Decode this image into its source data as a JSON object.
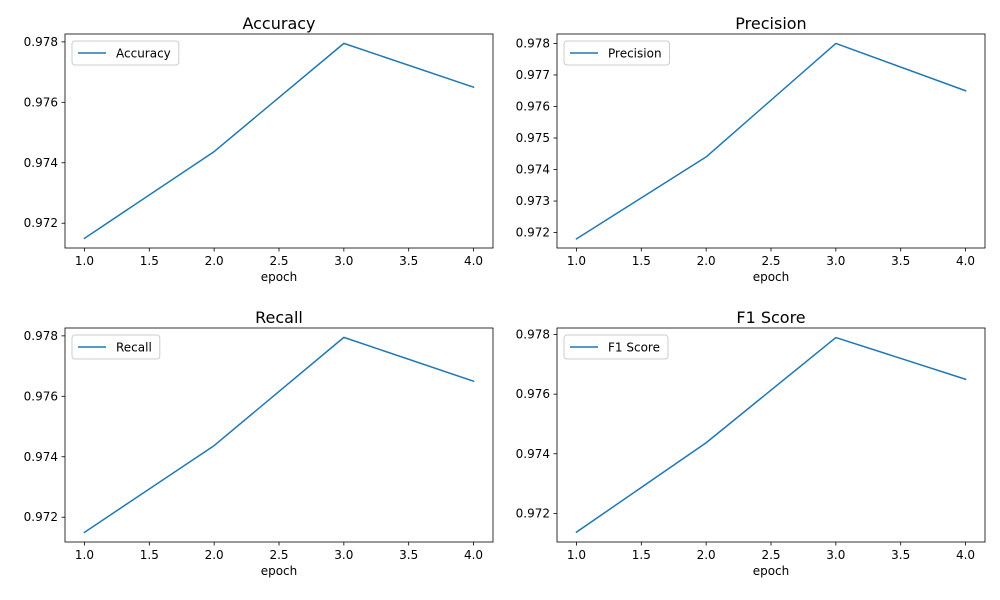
{
  "chart_data": [
    {
      "type": "line",
      "title": "Accuracy",
      "xlabel": "epoch",
      "ylabel": "",
      "x": [
        1,
        2,
        3,
        4
      ],
      "xlim": [
        0.85,
        4.15
      ],
      "ylim": [
        0.97118,
        0.97826
      ],
      "xticks": [
        "1.0",
        "1.5",
        "2.0",
        "2.5",
        "3.0",
        "3.5",
        "4.0"
      ],
      "yticks": [
        "0.972",
        "0.974",
        "0.976",
        "0.978"
      ],
      "legend": "upper-left",
      "grid": false,
      "series": [
        {
          "name": "Accuracy",
          "color": "#1f77b4",
          "values": [
            0.9715,
            0.97437,
            0.97795,
            0.9765
          ]
        }
      ]
    },
    {
      "type": "line",
      "title": "Precision",
      "xlabel": "epoch",
      "ylabel": "",
      "x": [
        1,
        2,
        3,
        4
      ],
      "xlim": [
        0.85,
        4.15
      ],
      "ylim": [
        0.97151,
        0.9783
      ],
      "xticks": [
        "1.0",
        "1.5",
        "2.0",
        "2.5",
        "3.0",
        "3.5",
        "4.0"
      ],
      "yticks": [
        "0.972",
        "0.973",
        "0.974",
        "0.975",
        "0.976",
        "0.977",
        "0.978"
      ],
      "legend": "upper-left",
      "grid": false,
      "series": [
        {
          "name": "Precision",
          "color": "#1f77b4",
          "values": [
            0.9718,
            0.9744,
            0.978,
            0.9765
          ]
        }
      ]
    },
    {
      "type": "line",
      "title": "Recall",
      "xlabel": "epoch",
      "ylabel": "",
      "x": [
        1,
        2,
        3,
        4
      ],
      "xlim": [
        0.85,
        4.15
      ],
      "ylim": [
        0.97118,
        0.97826
      ],
      "xticks": [
        "1.0",
        "1.5",
        "2.0",
        "2.5",
        "3.0",
        "3.5",
        "4.0"
      ],
      "yticks": [
        "0.972",
        "0.974",
        "0.976",
        "0.978"
      ],
      "legend": "upper-left",
      "grid": false,
      "series": [
        {
          "name": "Recall",
          "color": "#1f77b4",
          "values": [
            0.9715,
            0.97437,
            0.97795,
            0.9765
          ]
        }
      ]
    },
    {
      "type": "line",
      "title": "F1 Score",
      "xlabel": "epoch",
      "ylabel": "",
      "x": [
        1,
        2,
        3,
        4
      ],
      "xlim": [
        0.85,
        4.15
      ],
      "ylim": [
        0.97104,
        0.97822
      ],
      "xticks": [
        "1.0",
        "1.5",
        "2.0",
        "2.5",
        "3.0",
        "3.5",
        "4.0"
      ],
      "yticks": [
        "0.972",
        "0.974",
        "0.976",
        "0.978"
      ],
      "legend": "upper-left",
      "grid": false,
      "series": [
        {
          "name": "F1 Score",
          "color": "#1f77b4",
          "values": [
            0.97137,
            0.97437,
            0.9779,
            0.9765
          ]
        }
      ]
    }
  ]
}
